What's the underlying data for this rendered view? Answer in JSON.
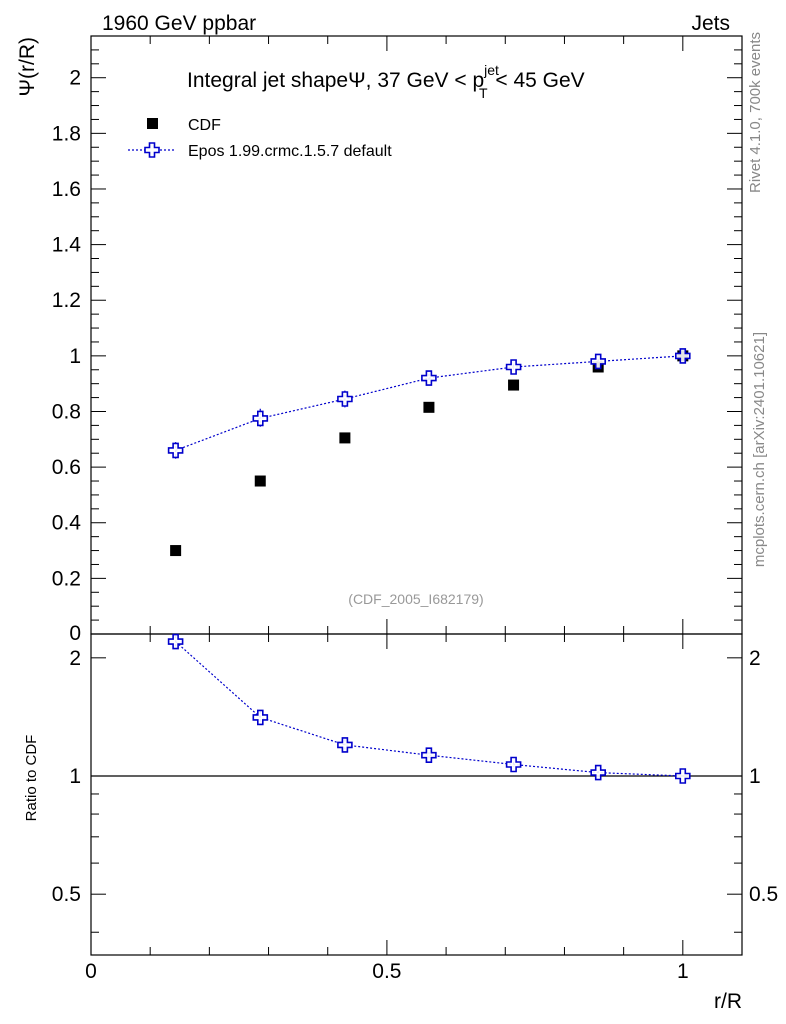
{
  "header": {
    "left": "1960 GeV ppbar",
    "right": "Jets"
  },
  "side_labels": {
    "rivet": "Rivet 4.1.0,  700k events",
    "mcplots": "mcplots.cern.ch [arXiv:2401.10621]"
  },
  "chart_data": {
    "type": "scatter",
    "title": {
      "main": "Integral jet shapeΨ, 37 GeV < p",
      "sup": "jet",
      "sub": "T",
      "tail": " < 45 GeV"
    },
    "watermark": "(CDF_2005_I682179)",
    "xlabel": "r/R",
    "ylabel": "Ψ(r/R)",
    "ratio_ylabel": "Ratio to CDF",
    "xlim": [
      0,
      1.1
    ],
    "ylim": [
      0,
      2.15
    ],
    "ratio_ylim": [
      0.35,
      2.3
    ],
    "x_ticks": [
      0,
      0.5,
      1
    ],
    "x_tick_labels": [
      "0",
      "0.5",
      "1"
    ],
    "y_ticks": [
      0.2,
      0.4,
      0.6,
      0.8,
      1,
      1.2,
      1.4,
      1.6,
      1.8,
      2
    ],
    "y_tick_labels": [
      "0.2",
      "0.4",
      "0.6",
      "0.8",
      "1",
      "1.2",
      "1.4",
      "1.6",
      "1.8",
      "2"
    ],
    "y_zero_label": "0",
    "ratio_y_ticks": [
      0.5,
      1,
      2
    ],
    "ratio_y_tick_labels": [
      "0.5",
      "1",
      "2"
    ],
    "legend": [
      "CDF",
      "Epos 1.99.crmc.1.5.7 default"
    ],
    "colors": {
      "data": "#000000",
      "mc": "#0000cc"
    },
    "series": [
      {
        "name": "CDF",
        "x": [
          0.143,
          0.286,
          0.429,
          0.571,
          0.714,
          0.857,
          1.0
        ],
        "y": [
          0.3,
          0.55,
          0.705,
          0.815,
          0.895,
          0.96,
          1.0
        ]
      },
      {
        "name": "Epos 1.99.crmc.1.5.7 default",
        "x": [
          0.143,
          0.286,
          0.429,
          0.571,
          0.714,
          0.857,
          1.0
        ],
        "y": [
          0.66,
          0.775,
          0.845,
          0.92,
          0.96,
          0.98,
          1.0
        ],
        "err": [
          0.03,
          0.035,
          0.03,
          0.015,
          0.01,
          0.008,
          0.0
        ]
      }
    ],
    "ratio": {
      "x": [
        0.143,
        0.286,
        0.429,
        0.571,
        0.714,
        0.857,
        1.0
      ],
      "y": [
        2.2,
        1.41,
        1.2,
        1.13,
        1.07,
        1.02,
        1.0
      ],
      "err": [
        0.07,
        0.05,
        0.04,
        0.02,
        0.015,
        0.01,
        0.0
      ]
    }
  }
}
